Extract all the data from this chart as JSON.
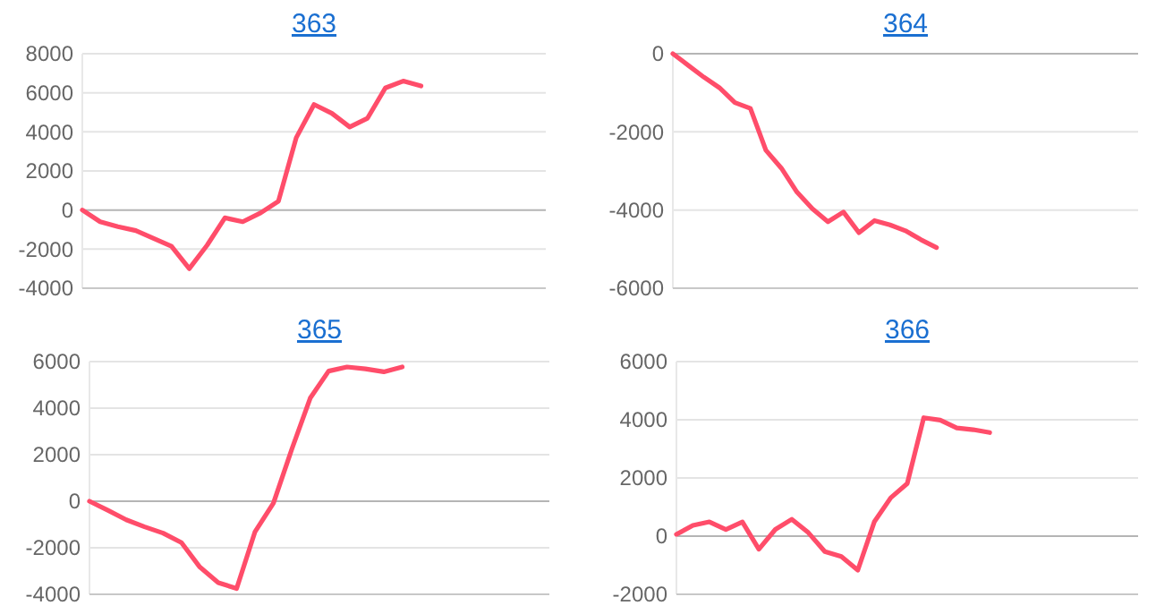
{
  "chart_data": [
    {
      "type": "line",
      "title": "363",
      "categories": [
        null,
        null,
        null,
        null,
        null,
        null,
        null,
        null,
        null,
        null,
        null,
        null,
        null,
        null,
        null,
        null,
        null,
        null,
        null,
        null,
        null,
        null,
        null,
        null,
        null,
        null,
        null
      ],
      "series": [
        {
          "color": "#ff4d6a",
          "values": [
            0,
            -600,
            -850,
            -1050,
            -1450,
            -1850,
            -3000,
            -1800,
            -400,
            -600,
            -150,
            450,
            3700,
            5400,
            4950,
            4250,
            4700,
            6250,
            6600,
            6350,
            null,
            null,
            null,
            null,
            null,
            null,
            null
          ]
        }
      ],
      "ylim": [
        -4000,
        8000
      ],
      "yticks": [
        -4000,
        -2000,
        0,
        2000,
        4000,
        6000,
        8000
      ],
      "grid": "y",
      "tick_labels": "y"
    },
    {
      "type": "line",
      "title": "364",
      "categories": [
        null,
        null,
        null,
        null,
        null,
        null,
        null,
        null,
        null,
        null,
        null,
        null,
        null,
        null,
        null,
        null,
        null,
        null,
        null,
        null,
        null,
        null,
        null,
        null,
        null,
        null,
        null,
        null,
        null,
        null,
        null
      ],
      "series": [
        {
          "color": "#ff4d6a",
          "values": [
            0,
            -300,
            -600,
            -870,
            -1250,
            -1400,
            -2470,
            -2930,
            -3540,
            -3970,
            -4300,
            -4050,
            -4580,
            -4270,
            -4380,
            -4530,
            -4760,
            -4960,
            null,
            null,
            null,
            null,
            null,
            null,
            null,
            null,
            null,
            null,
            null,
            null,
            null
          ]
        }
      ],
      "ylim": [
        -6000,
        0
      ],
      "yticks": [
        -6000,
        -4000,
        -2000,
        0
      ],
      "grid": "y",
      "tick_labels": "y"
    },
    {
      "type": "line",
      "title": "365",
      "categories": [
        null,
        null,
        null,
        null,
        null,
        null,
        null,
        null,
        null,
        null,
        null,
        null,
        null,
        null,
        null,
        null,
        null,
        null,
        null,
        null,
        null,
        null,
        null,
        null,
        null,
        null
      ],
      "series": [
        {
          "color": "#ff4d6a",
          "values": [
            0,
            -390,
            -800,
            -1100,
            -1370,
            -1780,
            -2830,
            -3500,
            -3750,
            -1310,
            -80,
            2240,
            4430,
            5590,
            5770,
            5690,
            5560,
            5770,
            null,
            null,
            null,
            null,
            null,
            null,
            null,
            null
          ]
        }
      ],
      "ylim": [
        -4000,
        6000
      ],
      "yticks": [
        -4000,
        -2000,
        0,
        2000,
        4000,
        6000
      ],
      "grid": "y",
      "tick_labels": "y"
    },
    {
      "type": "line",
      "title": "366",
      "categories": [
        null,
        null,
        null,
        null,
        null,
        null,
        null,
        null,
        null,
        null,
        null,
        null,
        null,
        null,
        null,
        null,
        null,
        null,
        null,
        null,
        null,
        null,
        null,
        null,
        null,
        null,
        null,
        null,
        null
      ],
      "series": [
        {
          "color": "#ff4d6a",
          "values": [
            60,
            370,
            490,
            230,
            490,
            -450,
            230,
            580,
            120,
            -530,
            -700,
            -1170,
            490,
            1320,
            1810,
            4070,
            3990,
            3720,
            3660,
            3560,
            null,
            null,
            null,
            null,
            null,
            null,
            null,
            null,
            null
          ]
        }
      ],
      "ylim": [
        -2000,
        6000
      ],
      "yticks": [
        -2000,
        0,
        2000,
        4000,
        6000
      ],
      "grid": "y",
      "tick_labels": "y"
    }
  ]
}
